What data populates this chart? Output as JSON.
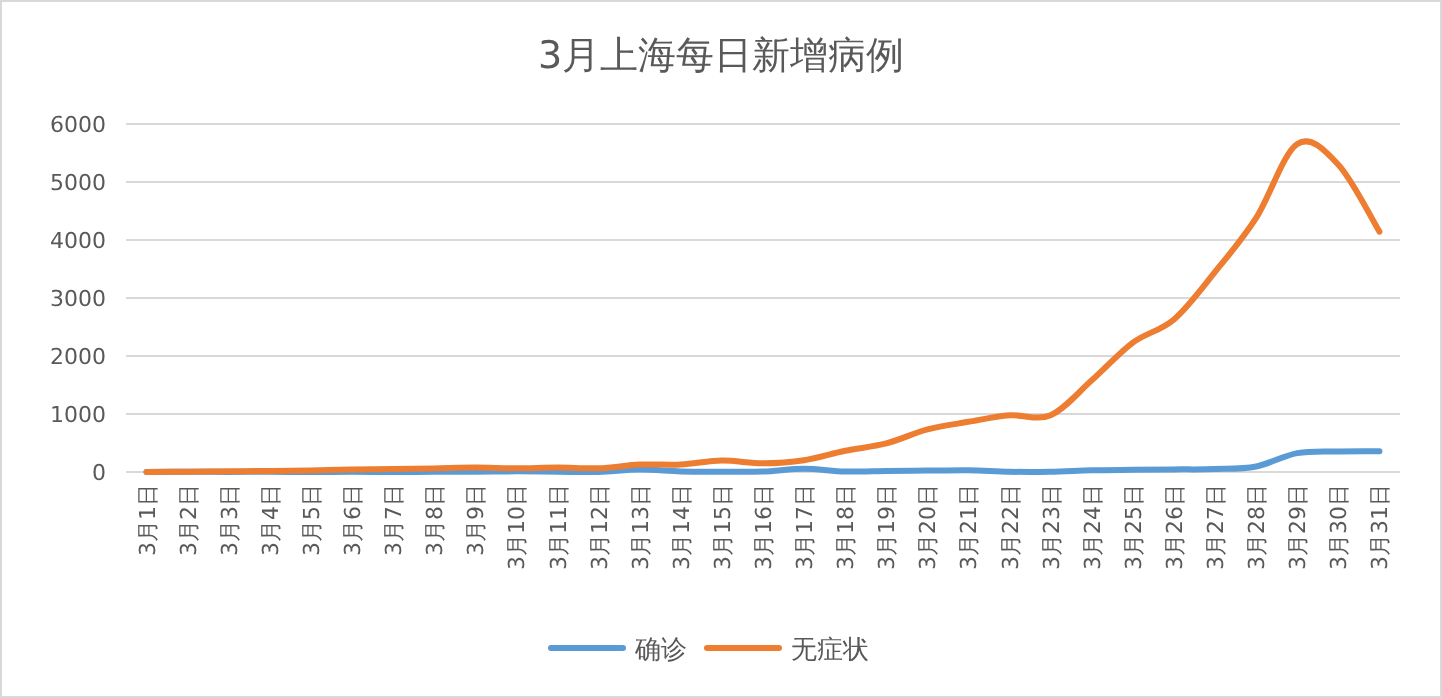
{
  "chart_data": {
    "type": "line",
    "title": "3月上海每日新增病例",
    "categories": [
      "3月1日",
      "3月2日",
      "3月3日",
      "3月4日",
      "3月5日",
      "3月6日",
      "3月7日",
      "3月8日",
      "3月9日",
      "3月10日",
      "3月11日",
      "3月12日",
      "3月13日",
      "3月14日",
      "3月15日",
      "3月16日",
      "3月17日",
      "3月18日",
      "3月19日",
      "3月20日",
      "3月21日",
      "3月22日",
      "3月23日",
      "3月24日",
      "3月25日",
      "3月26日",
      "3月27日",
      "3月28日",
      "3月29日",
      "3月30日",
      "3月31日"
    ],
    "series": [
      {
        "name": "确诊",
        "color": "#5b9bd5",
        "values": [
          1,
          3,
          2,
          3,
          0,
          3,
          0,
          3,
          4,
          11,
          5,
          1,
          41,
          9,
          5,
          8,
          57,
          8,
          17,
          24,
          31,
          4,
          4,
          29,
          38,
          45,
          50,
          96,
          326,
          355,
          358
        ]
      },
      {
        "name": "无症状",
        "color": "#ed7d31",
        "values": [
          1,
          5,
          14,
          16,
          28,
          45,
          51,
          62,
          76,
          64,
          78,
          64,
          128,
          130,
          197,
          150,
          203,
          366,
          492,
          734,
          865,
          977,
          979,
          1580,
          2231,
          2631,
          3450,
          4381,
          5656,
          5298,
          4144
        ]
      }
    ],
    "ylim": [
      0,
      6000
    ],
    "yticks": [
      0,
      1000,
      2000,
      3000,
      4000,
      5000,
      6000
    ],
    "grid": "y",
    "legend": "bottom",
    "line_style": "solid",
    "marker": "none"
  }
}
